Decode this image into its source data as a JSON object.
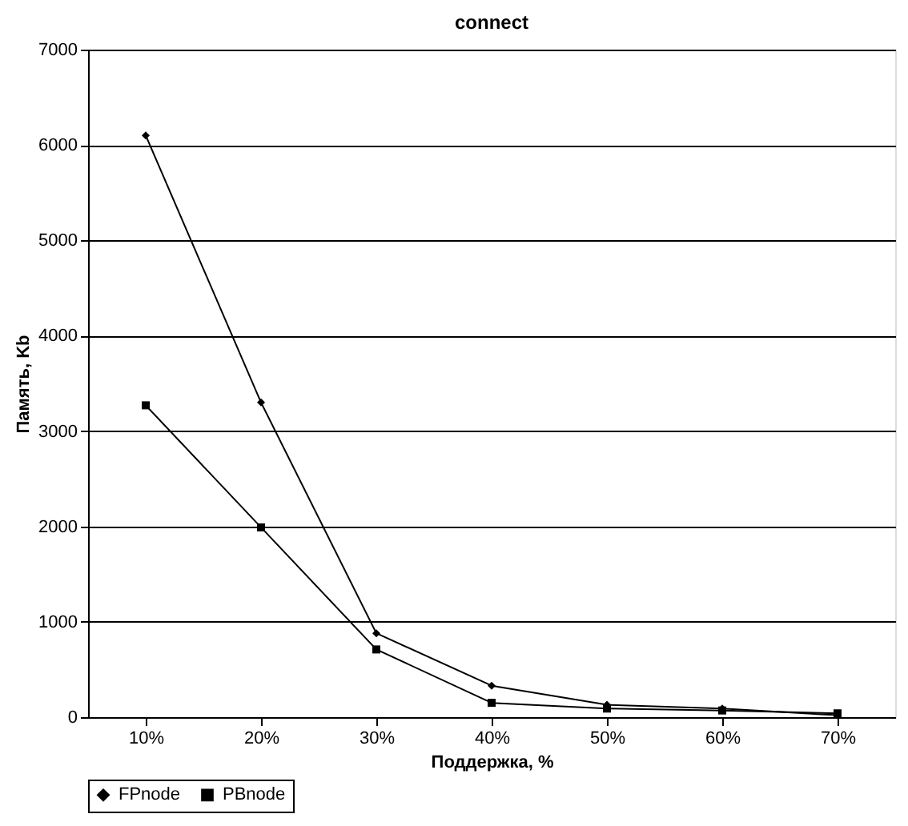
{
  "chart_data": {
    "type": "line",
    "title": "connect",
    "xlabel": "Поддержка, %",
    "ylabel": "Память, Kb",
    "categories": [
      "10%",
      "20%",
      "30%",
      "40%",
      "50%",
      "60%",
      "70%"
    ],
    "series": [
      {
        "name": "FPnode",
        "color": "#000000",
        "marker": "diamond",
        "values": [
          6100,
          3300,
          880,
          330,
          130,
          90,
          20
        ]
      },
      {
        "name": "PBnode",
        "color": "#000000",
        "marker": "square",
        "values": [
          3270,
          1990,
          710,
          150,
          90,
          70,
          40
        ]
      }
    ],
    "ylim": [
      0,
      7000
    ],
    "yticks": [
      0,
      1000,
      2000,
      3000,
      4000,
      5000,
      6000,
      7000
    ],
    "grid": "y",
    "legend": "bottom left",
    "line_style": "solid"
  }
}
